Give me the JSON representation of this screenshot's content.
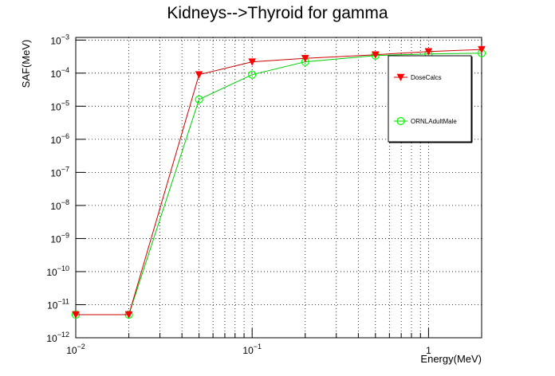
{
  "chart_data": {
    "type": "line",
    "title": "Kidneys-->Thyroid for gamma",
    "xlabel": "Energy(MeV)",
    "ylabel": "SAF(MeV)",
    "xscale": "log",
    "yscale": "log",
    "xlim": [
      0.01,
      2.0
    ],
    "ylim": [
      1e-12,
      0.0012
    ],
    "grid": true,
    "legend_position": "top-right",
    "x_ticks": [
      {
        "value": 0.01,
        "base": "10",
        "exp": "−2"
      },
      {
        "value": 0.1,
        "base": "10",
        "exp": "−1"
      },
      {
        "value": 1,
        "base": "1",
        "exp": ""
      }
    ],
    "y_ticks": [
      {
        "value": 1e-12,
        "base": "10",
        "exp": "−12"
      },
      {
        "value": 1e-11,
        "base": "10",
        "exp": "−11"
      },
      {
        "value": 1e-10,
        "base": "10",
        "exp": "−10"
      },
      {
        "value": 1e-09,
        "base": "10",
        "exp": "−9"
      },
      {
        "value": 1e-08,
        "base": "10",
        "exp": "−8"
      },
      {
        "value": 1e-07,
        "base": "10",
        "exp": "−7"
      },
      {
        "value": 1e-06,
        "base": "10",
        "exp": "−6"
      },
      {
        "value": 1e-05,
        "base": "10",
        "exp": "−5"
      },
      {
        "value": 0.0001,
        "base": "10",
        "exp": "−4"
      },
      {
        "value": 0.001,
        "base": "10",
        "exp": "−3"
      }
    ],
    "series": [
      {
        "name": "DoseCalcs",
        "color": "#cc0000",
        "marker_color": "#ff0000",
        "marker": "triangle-down",
        "x": [
          0.01,
          0.02,
          0.05,
          0.1,
          0.2,
          0.5,
          1.0,
          2.0
        ],
        "y": [
          5e-12,
          5e-12,
          9e-05,
          0.00022,
          0.00028,
          0.00036,
          0.00045,
          0.00052
        ]
      },
      {
        "name": "ORNLAdultMale",
        "color": "#00cc00",
        "marker_color": "#00ff00",
        "marker": "open-circle",
        "x": [
          0.01,
          0.02,
          0.05,
          0.1,
          0.2,
          0.5,
          1.0,
          2.0
        ],
        "y": [
          5e-12,
          5e-12,
          1.6e-05,
          9e-05,
          0.00022,
          0.00034,
          0.00038,
          0.0004
        ]
      }
    ]
  }
}
